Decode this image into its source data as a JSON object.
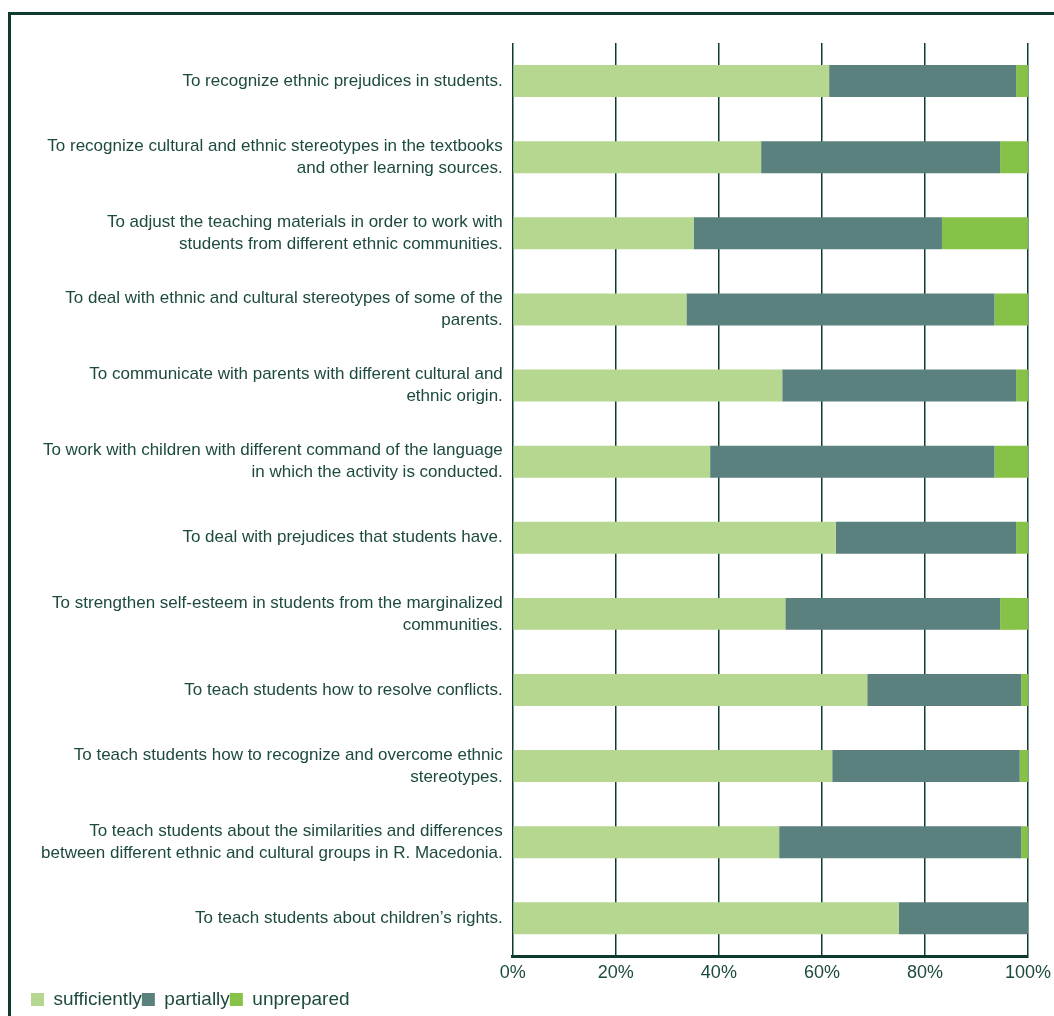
{
  "chart_data": {
    "type": "bar",
    "orientation": "horizontal",
    "stacked": true,
    "categories": [
      "To recognize ethnic prejudices in students.",
      "To recognize cultural and ethnic stereotypes in the textbooks and other learning sources.",
      "To adjust the teaching materials in order to work with students from different ethnic communities.",
      "To deal with ethnic and cultural stereotypes of some of the parents.",
      "To communicate with parents with different cultural and ethnic origin.",
      "To work with children with different command of the language in which the activity is conducted.",
      "To deal with prejudices that students have.",
      "To strengthen self-esteem in students from the marginalized communities.",
      "To teach students how to resolve conflicts.",
      "To teach students how to recognize and overcome ethnic stereotypes.",
      "To teach students about the similarities and differences between different ethnic and cultural groups in R. Macedonia.",
      "To teach students about children’s rights."
    ],
    "series": [
      {
        "name": "sufficiently",
        "color": "#b5d790",
        "values": [
          61.4,
          48.2,
          35.1,
          33.7,
          52.3,
          38.3,
          62.7,
          52.9,
          68.8,
          62.0,
          51.7,
          74.9
        ]
      },
      {
        "name": "partially",
        "color": "#5a817e",
        "values": [
          36.3,
          46.4,
          48.2,
          59.8,
          45.4,
          55.2,
          35.0,
          41.7,
          29.9,
          36.4,
          47.0,
          25.1
        ]
      },
      {
        "name": "unprepared",
        "color": "#86c247",
        "values": [
          2.3,
          5.4,
          16.7,
          6.5,
          2.3,
          6.5,
          2.3,
          5.4,
          1.3,
          1.6,
          1.3,
          0
        ]
      }
    ],
    "xlim": [
      0,
      100
    ],
    "xticks": [
      {
        "value": 0,
        "label": "0%"
      },
      {
        "value": 20,
        "label": "20%"
      },
      {
        "value": 40,
        "label": "40%"
      },
      {
        "value": 60,
        "label": "60%"
      },
      {
        "value": 80,
        "label": "80%"
      },
      {
        "value": 100,
        "label": "100%"
      }
    ],
    "grid": "x",
    "legend": "bottom"
  }
}
